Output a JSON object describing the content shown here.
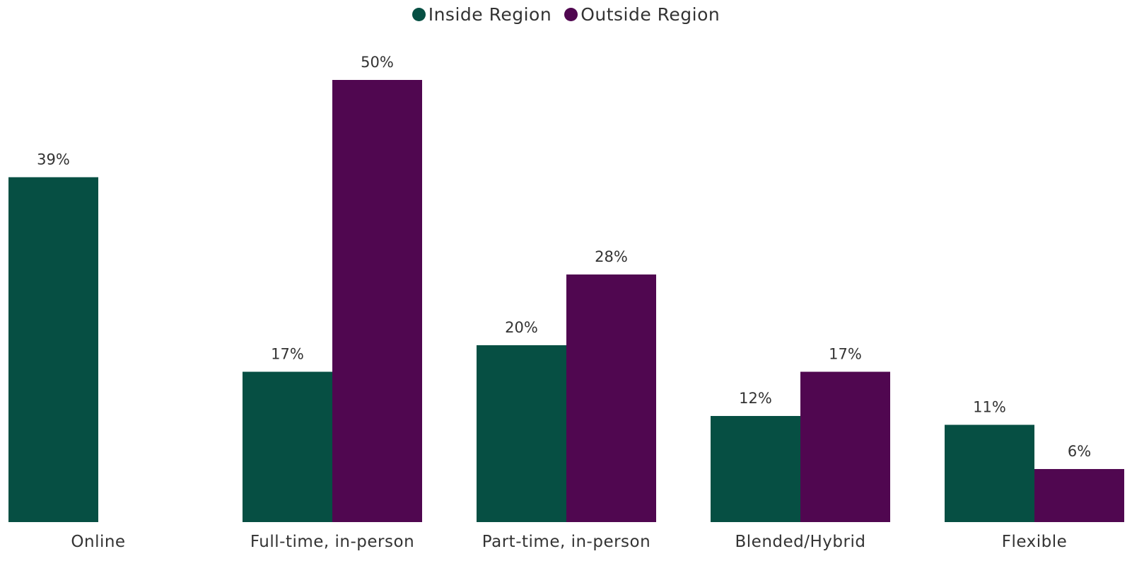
{
  "chart_data": {
    "type": "bar",
    "title": "",
    "xlabel": "",
    "ylabel": "",
    "categories": [
      "Online",
      "Full-time, in-person",
      "Part-time, in-person",
      "Blended/Hybrid",
      "Flexible"
    ],
    "series": [
      {
        "name": "Inside Region",
        "color": "#064f43",
        "values": [
          39,
          17,
          20,
          12,
          11
        ],
        "labels": [
          "39%",
          "17%",
          "20%",
          "12%",
          "11%"
        ]
      },
      {
        "name": "Outside Region",
        "color": "#500750",
        "values": [
          null,
          50,
          28,
          17,
          6
        ],
        "labels": [
          "",
          "50%",
          "28%",
          "17%",
          "6%"
        ]
      }
    ],
    "ylim": [
      0,
      50
    ],
    "grid": false,
    "legend_position": "top-center"
  }
}
